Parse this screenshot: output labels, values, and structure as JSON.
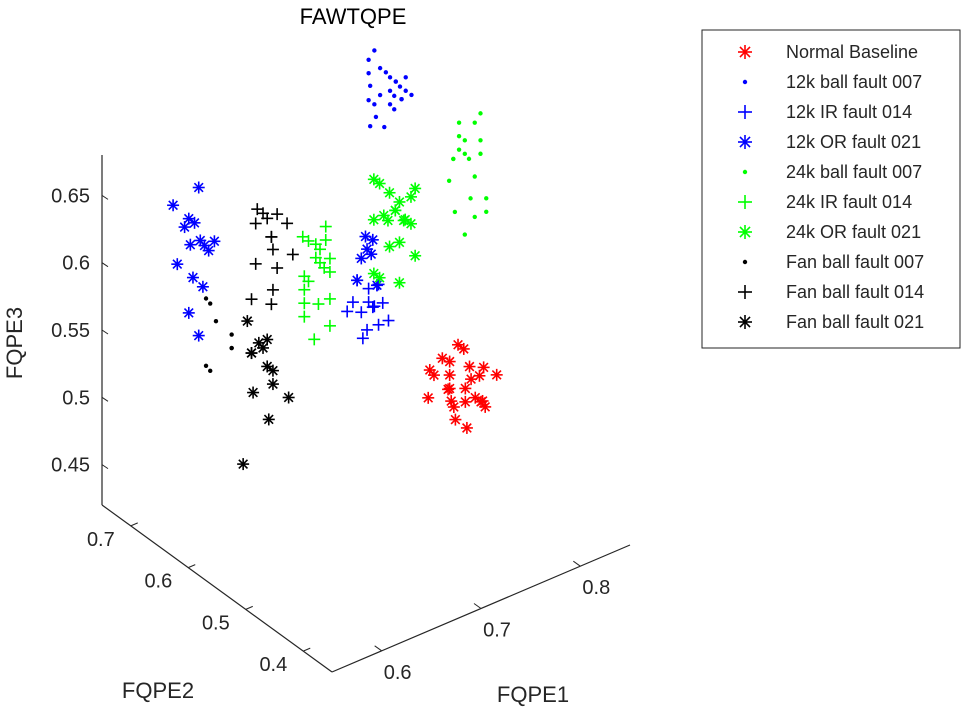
{
  "chart_data": {
    "type": "scatter",
    "projection": "3d",
    "title": "FAWTQPE",
    "xlabel": "FQPE1",
    "ylabel": "FQPE2",
    "zlabel": "FQPE3",
    "xlim": [
      0.55,
      0.85
    ],
    "ylim": [
      0.35,
      0.75
    ],
    "zlim": [
      0.42,
      0.68
    ],
    "x_ticks": [
      "0.6",
      "0.7",
      "0.8"
    ],
    "y_ticks": [
      "0.4",
      "0.5",
      "0.6",
      "0.7"
    ],
    "z_ticks": [
      "0.45",
      "0.5",
      "0.55",
      "0.6",
      "0.65"
    ],
    "legend_position": "outside-right",
    "grid": false,
    "series": [
      {
        "name": "Normal Baseline",
        "marker": "asterisk",
        "color": "#ff0000",
        "x": [
          0.79,
          0.8,
          0.81,
          0.78,
          0.8,
          0.82,
          0.79,
          0.81,
          0.8,
          0.78,
          0.82,
          0.79,
          0.8,
          0.81,
          0.77,
          0.83,
          0.8,
          0.79,
          0.81,
          0.8,
          0.78,
          0.82,
          0.8,
          0.79,
          0.81
        ],
        "y": [
          0.56,
          0.55,
          0.57,
          0.58,
          0.54,
          0.56,
          0.53,
          0.58,
          0.55,
          0.57,
          0.55,
          0.56,
          0.59,
          0.54,
          0.56,
          0.57,
          0.52,
          0.55,
          0.56,
          0.58,
          0.54,
          0.53,
          0.57,
          0.56,
          0.55
        ],
        "z": [
          0.5,
          0.49,
          0.51,
          0.48,
          0.5,
          0.49,
          0.47,
          0.51,
          0.48,
          0.5,
          0.47,
          0.49,
          0.5,
          0.48,
          0.51,
          0.49,
          0.49,
          0.47,
          0.5,
          0.48,
          0.49,
          0.5,
          0.47,
          0.51,
          0.48
        ]
      },
      {
        "name": "12k ball fault 007",
        "marker": "dot",
        "color": "#0000ff",
        "x": [
          0.72,
          0.73,
          0.74,
          0.72,
          0.73,
          0.71,
          0.74,
          0.72,
          0.73,
          0.74,
          0.72,
          0.71,
          0.73,
          0.72,
          0.74,
          0.73,
          0.72,
          0.73,
          0.71,
          0.74,
          0.72,
          0.73,
          0.72,
          0.73,
          0.74
        ],
        "y": [
          0.56,
          0.55,
          0.57,
          0.58,
          0.54,
          0.56,
          0.55,
          0.57,
          0.56,
          0.54,
          0.58,
          0.55,
          0.57,
          0.56,
          0.55,
          0.56,
          0.57,
          0.54,
          0.56,
          0.57,
          0.55,
          0.56,
          0.58,
          0.55,
          0.56
        ],
        "z": [
          0.73,
          0.74,
          0.72,
          0.75,
          0.73,
          0.71,
          0.74,
          0.76,
          0.72,
          0.73,
          0.74,
          0.72,
          0.7,
          0.75,
          0.73,
          0.74,
          0.72,
          0.73,
          0.74,
          0.71,
          0.75,
          0.73,
          0.72,
          0.74,
          0.73
        ]
      },
      {
        "name": "12k IR fault 014",
        "marker": "plus",
        "color": "#0000ff",
        "x": [
          0.72,
          0.73,
          0.72,
          0.74,
          0.71,
          0.73,
          0.72,
          0.74,
          0.73,
          0.72,
          0.71,
          0.73,
          0.72,
          0.74,
          0.73
        ],
        "y": [
          0.58,
          0.59,
          0.6,
          0.58,
          0.59,
          0.6,
          0.58,
          0.59,
          0.61,
          0.57,
          0.6,
          0.58,
          0.59,
          0.6,
          0.58
        ],
        "z": [
          0.57,
          0.56,
          0.58,
          0.55,
          0.57,
          0.54,
          0.58,
          0.56,
          0.55,
          0.57,
          0.56,
          0.58,
          0.54,
          0.57,
          0.55
        ]
      },
      {
        "name": "12k OR fault 021",
        "marker": "asterisk",
        "color": "#0000ff",
        "x": [
          0.62,
          0.63,
          0.61,
          0.64,
          0.62,
          0.63,
          0.61,
          0.62,
          0.64,
          0.63,
          0.62,
          0.61,
          0.63,
          0.62,
          0.64,
          0.73,
          0.74,
          0.73,
          0.72,
          0.74,
          0.73,
          0.74
        ],
        "y": [
          0.72,
          0.71,
          0.73,
          0.72,
          0.7,
          0.73,
          0.71,
          0.72,
          0.71,
          0.72,
          0.74,
          0.7,
          0.72,
          0.71,
          0.73,
          0.6,
          0.61,
          0.59,
          0.6,
          0.62,
          0.61,
          0.6
        ],
        "z": [
          0.62,
          0.6,
          0.63,
          0.59,
          0.61,
          0.57,
          0.62,
          0.55,
          0.6,
          0.64,
          0.58,
          0.61,
          0.53,
          0.62,
          0.56,
          0.6,
          0.59,
          0.61,
          0.58,
          0.6,
          0.59,
          0.57
        ]
      },
      {
        "name": "24k ball fault 007",
        "marker": "dot",
        "color": "#00ff00",
        "x": [
          0.84,
          0.85,
          0.84,
          0.85,
          0.84,
          0.85,
          0.84,
          0.83,
          0.85,
          0.84,
          0.85,
          0.84,
          0.85,
          0.84,
          0.83,
          0.85,
          0.84,
          0.85,
          0.84,
          0.85
        ],
        "y": [
          0.62,
          0.61,
          0.63,
          0.62,
          0.64,
          0.6,
          0.63,
          0.62,
          0.61,
          0.63,
          0.62,
          0.64,
          0.61,
          0.62,
          0.63,
          0.62,
          0.61,
          0.63,
          0.62,
          0.6
        ],
        "z": [
          0.64,
          0.63,
          0.65,
          0.61,
          0.62,
          0.6,
          0.64,
          0.59,
          0.66,
          0.63,
          0.58,
          0.62,
          0.64,
          0.57,
          0.61,
          0.65,
          0.6,
          0.62,
          0.63,
          0.59
        ]
      },
      {
        "name": "24k IR fault 014",
        "marker": "plus",
        "color": "#00ff00",
        "x": [
          0.7,
          0.71,
          0.69,
          0.7,
          0.71,
          0.69,
          0.7,
          0.71,
          0.7,
          0.69,
          0.71,
          0.7,
          0.69,
          0.7,
          0.71,
          0.69,
          0.7,
          0.71,
          0.7,
          0.69
        ],
        "y": [
          0.63,
          0.64,
          0.62,
          0.65,
          0.63,
          0.64,
          0.62,
          0.63,
          0.65,
          0.64,
          0.63,
          0.62,
          0.64,
          0.63,
          0.65,
          0.62,
          0.64,
          0.63,
          0.66,
          0.64
        ],
        "z": [
          0.6,
          0.58,
          0.61,
          0.57,
          0.59,
          0.55,
          0.62,
          0.56,
          0.6,
          0.58,
          0.54,
          0.61,
          0.57,
          0.59,
          0.55,
          0.6,
          0.53,
          0.58,
          0.6,
          0.56
        ]
      },
      {
        "name": "24k OR fault 021",
        "marker": "asterisk",
        "color": "#00ff00",
        "x": [
          0.77,
          0.78,
          0.76,
          0.78,
          0.77,
          0.79,
          0.76,
          0.78,
          0.77,
          0.79,
          0.76,
          0.78,
          0.77,
          0.78,
          0.76,
          0.79,
          0.77,
          0.78,
          0.76,
          0.78
        ],
        "y": [
          0.63,
          0.62,
          0.64,
          0.63,
          0.62,
          0.64,
          0.63,
          0.61,
          0.64,
          0.62,
          0.63,
          0.65,
          0.62,
          0.63,
          0.64,
          0.62,
          0.63,
          0.61,
          0.64,
          0.63
        ],
        "z": [
          0.62,
          0.6,
          0.63,
          0.58,
          0.61,
          0.59,
          0.56,
          0.62,
          0.6,
          0.57,
          0.63,
          0.59,
          0.61,
          0.55,
          0.6,
          0.62,
          0.58,
          0.6,
          0.56,
          0.61
        ]
      },
      {
        "name": "Fan ball fault 007",
        "marker": "dot",
        "color": "#000000",
        "x": [
          0.63,
          0.64,
          0.63,
          0.62,
          0.64,
          0.63,
          0.62,
          0.64
        ],
        "y": [
          0.69,
          0.68,
          0.7,
          0.69,
          0.68,
          0.7,
          0.69,
          0.68
        ],
        "z": [
          0.55,
          0.53,
          0.56,
          0.52,
          0.54,
          0.51,
          0.57,
          0.53
        ]
      },
      {
        "name": "Fan ball fault 014",
        "marker": "plus",
        "color": "#000000",
        "x": [
          0.67,
          0.68,
          0.66,
          0.68,
          0.67,
          0.69,
          0.66,
          0.68,
          0.67,
          0.68,
          0.66,
          0.67,
          0.69,
          0.67,
          0.68
        ],
        "y": [
          0.67,
          0.68,
          0.66,
          0.67,
          0.69,
          0.66,
          0.68,
          0.67,
          0.66,
          0.68,
          0.67,
          0.69,
          0.67,
          0.66,
          0.68
        ],
        "z": [
          0.62,
          0.6,
          0.63,
          0.58,
          0.61,
          0.59,
          0.56,
          0.62,
          0.6,
          0.55,
          0.63,
          0.58,
          0.61,
          0.57,
          0.6
        ]
      },
      {
        "name": "Fan ball fault 021",
        "marker": "asterisk",
        "color": "#000000",
        "x": [
          0.66,
          0.67,
          0.65,
          0.67,
          0.66,
          0.68,
          0.65,
          0.67,
          0.66,
          0.67,
          0.65,
          0.66,
          0.64
        ],
        "y": [
          0.66,
          0.67,
          0.65,
          0.66,
          0.68,
          0.65,
          0.67,
          0.66,
          0.65,
          0.67,
          0.66,
          0.68,
          0.66
        ],
        "z": [
          0.53,
          0.51,
          0.54,
          0.5,
          0.52,
          0.49,
          0.55,
          0.51,
          0.48,
          0.53,
          0.5,
          0.52,
          0.45
        ]
      }
    ]
  }
}
